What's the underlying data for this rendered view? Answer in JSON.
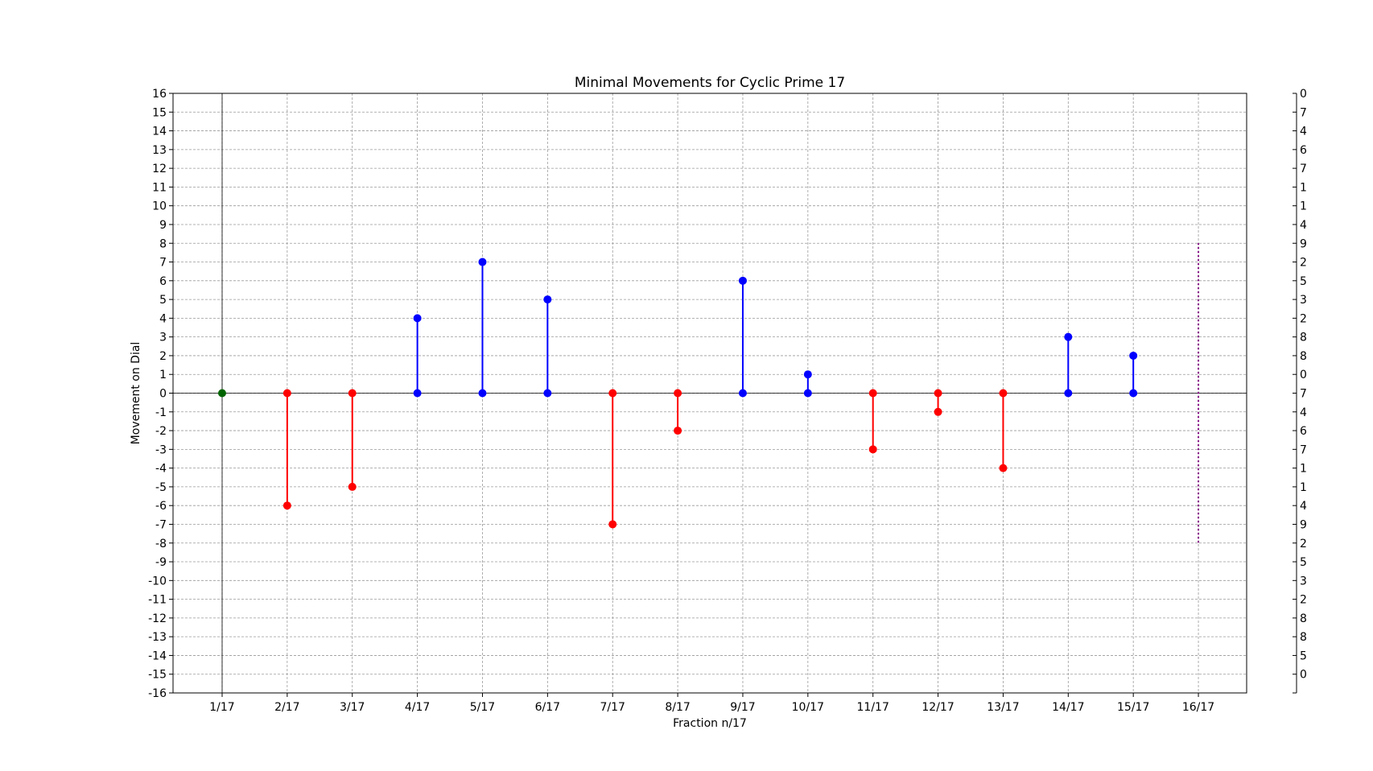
{
  "chart_data": {
    "type": "stem",
    "title": "Minimal Movements for Cyclic Prime 17",
    "xlabel": "Fraction n/17",
    "ylabel": "Movement on Dial",
    "categories": [
      "1/17",
      "2/17",
      "3/17",
      "4/17",
      "5/17",
      "6/17",
      "7/17",
      "8/17",
      "9/17",
      "10/17",
      "11/17",
      "12/17",
      "13/17",
      "14/17",
      "15/17",
      "16/17"
    ],
    "values": [
      0,
      -6,
      -5,
      4,
      7,
      5,
      -7,
      -2,
      6,
      1,
      -3,
      -1,
      -4,
      3,
      2,
      null
    ],
    "ylim": [
      -16,
      16
    ],
    "grid": true,
    "right_axis_labels": [
      "0",
      "7",
      "4",
      "6",
      "7",
      "1",
      "1",
      "4",
      "9",
      "2",
      "5",
      "3",
      "2",
      "8",
      "8",
      "0",
      "7",
      "4",
      "6",
      "7",
      "1",
      "1",
      "4",
      "9",
      "2",
      "5",
      "3",
      "2",
      "8",
      "8",
      "5",
      "0"
    ],
    "special_marker": {
      "category": "16/17",
      "range": [
        -8,
        8
      ],
      "style": "dotted",
      "color": "#800080"
    },
    "colors": {
      "positive": "#0000ff",
      "negative": "#ff0000",
      "zero": "#006400"
    }
  }
}
